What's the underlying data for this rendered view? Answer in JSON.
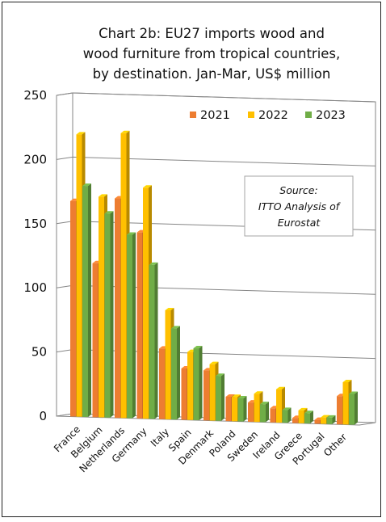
{
  "chart_data": {
    "type": "bar",
    "title_lines": [
      "Chart 2b: EU27 imports wood and",
      "wood furniture from tropical countries,",
      "by destination. Jan-Mar, US$ million"
    ],
    "categories": [
      "France",
      "Belgium",
      "Netherlands",
      "Germany",
      "Italy",
      "Spain",
      "Denmark",
      "Poland",
      "Sweden",
      "Ireland",
      "Greece",
      "Portugal",
      "Other"
    ],
    "series": [
      {
        "name": "2021",
        "color": "#ed7d31",
        "values": [
          168,
          120,
          171,
          145,
          55,
          40,
          39,
          19,
          15,
          11,
          4,
          3,
          22
        ]
      },
      {
        "name": "2022",
        "color": "#ffc000",
        "values": [
          220,
          172,
          222,
          180,
          85,
          53,
          44,
          19,
          22,
          26,
          10,
          5,
          33
        ]
      },
      {
        "name": "2023",
        "color": "#70ad47",
        "values": [
          180,
          159,
          143,
          120,
          71,
          56,
          35,
          18,
          14,
          10,
          8,
          5,
          24
        ]
      }
    ],
    "ylim": [
      0,
      250
    ],
    "yticks": [
      0,
      50,
      100,
      150,
      200,
      250
    ],
    "grid": true,
    "legend_position": "top-right",
    "annotation": [
      "Source:",
      "ITTO Analysis of",
      "Eurostat"
    ]
  }
}
